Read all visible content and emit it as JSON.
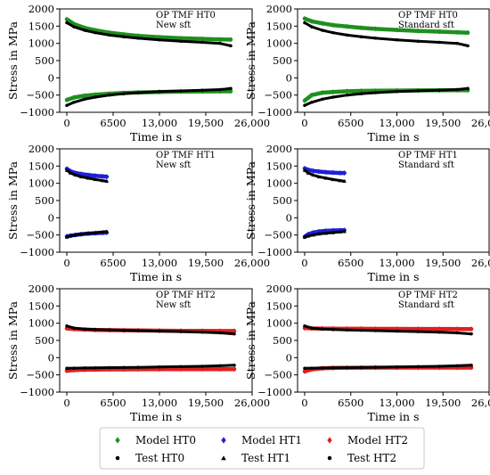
{
  "chart_data": [
    {
      "type": "scatter",
      "annotation": [
        "OP TMF HT0",
        "New sft"
      ],
      "xlabel": "Time in s",
      "ylabel": "Stress in MPa",
      "xlim": [
        -1000,
        26000
      ],
      "ylim": [
        -1000,
        2000
      ],
      "xticks": [
        0,
        6500,
        13000,
        19500,
        26000
      ],
      "xtick_labels": [
        "0",
        "6500",
        "13,000",
        "19,500",
        "26,000"
      ],
      "yticks": [
        -1000,
        -500,
        0,
        500,
        1000,
        1500,
        2000
      ],
      "ytick_labels": [
        "−1000",
        "−500",
        "0",
        "500",
        "1000",
        "1500",
        "2000"
      ],
      "series": [
        {
          "name": "Model HT0",
          "color": "#1f8f1f",
          "marker": "diamond",
          "branch": "max",
          "x": [
            0,
            1000,
            2500,
            4000,
            6000,
            8000,
            10000,
            13000,
            16000,
            19000,
            21500,
            23000
          ],
          "y": [
            1700,
            1560,
            1450,
            1380,
            1310,
            1260,
            1220,
            1180,
            1150,
            1130,
            1115,
            1110
          ]
        },
        {
          "name": "Model HT0",
          "color": "#1f8f1f",
          "marker": "diamond",
          "branch": "min",
          "x": [
            0,
            1000,
            2500,
            4000,
            6000,
            8000,
            10000,
            13000,
            16000,
            19000,
            21500,
            23000
          ],
          "y": [
            -640,
            -570,
            -520,
            -490,
            -460,
            -440,
            -425,
            -410,
            -400,
            -395,
            -392,
            -390
          ]
        },
        {
          "name": "Test HT0",
          "color": "#000000",
          "marker": "dot",
          "branch": "max",
          "x": [
            0,
            1000,
            2500,
            4000,
            6000,
            8000,
            10000,
            13000,
            16000,
            19000,
            21500,
            23000
          ],
          "y": [
            1600,
            1480,
            1380,
            1310,
            1240,
            1190,
            1150,
            1100,
            1060,
            1030,
            1000,
            930
          ]
        },
        {
          "name": "Test HT0",
          "color": "#000000",
          "marker": "dot",
          "branch": "min",
          "x": [
            0,
            1000,
            2500,
            4000,
            6000,
            8000,
            10000,
            13000,
            16000,
            19000,
            21500,
            23000
          ],
          "y": [
            -800,
            -710,
            -620,
            -560,
            -500,
            -460,
            -430,
            -400,
            -380,
            -360,
            -340,
            -310
          ]
        }
      ]
    },
    {
      "type": "scatter",
      "annotation": [
        "OP TMF HT0",
        "Standard sft"
      ],
      "xlabel": "Time in s",
      "ylabel": "Stress in MPa",
      "xlim": [
        -1000,
        26000
      ],
      "ylim": [
        -1000,
        2000
      ],
      "xticks": [
        0,
        6500,
        13000,
        19500,
        26000
      ],
      "xtick_labels": [
        "0",
        "6500",
        "13,000",
        "19,500",
        "26,000"
      ],
      "yticks": [
        -1000,
        -500,
        0,
        500,
        1000,
        1500,
        2000
      ],
      "ytick_labels": [
        "−1000",
        "−500",
        "0",
        "500",
        "1000",
        "1500",
        "2000"
      ],
      "series": [
        {
          "name": "Model HT0",
          "color": "#1f8f1f",
          "marker": "diamond",
          "branch": "max",
          "x": [
            0,
            1000,
            2500,
            4000,
            6000,
            8000,
            10000,
            13000,
            16000,
            19000,
            21500,
            23000
          ],
          "y": [
            1720,
            1640,
            1580,
            1530,
            1490,
            1450,
            1420,
            1390,
            1360,
            1340,
            1320,
            1310
          ]
        },
        {
          "name": "Model HT0",
          "color": "#1f8f1f",
          "marker": "diamond",
          "branch": "min",
          "x": [
            0,
            1000,
            2500,
            4000,
            6000,
            8000,
            10000,
            13000,
            16000,
            19000,
            21500,
            23000
          ],
          "y": [
            -660,
            -500,
            -430,
            -410,
            -390,
            -380,
            -375,
            -370,
            -365,
            -362,
            -360,
            -360
          ]
        },
        {
          "name": "Test HT0",
          "color": "#000000",
          "marker": "dot",
          "branch": "max",
          "x": [
            0,
            1000,
            2500,
            4000,
            6000,
            8000,
            10000,
            13000,
            16000,
            19000,
            21500,
            23000
          ],
          "y": [
            1600,
            1480,
            1380,
            1310,
            1240,
            1190,
            1150,
            1100,
            1060,
            1030,
            1000,
            930
          ]
        },
        {
          "name": "Test HT0",
          "color": "#000000",
          "marker": "dot",
          "branch": "min",
          "x": [
            0,
            1000,
            2500,
            4000,
            6000,
            8000,
            10000,
            13000,
            16000,
            19000,
            21500,
            23000
          ],
          "y": [
            -800,
            -710,
            -620,
            -560,
            -500,
            -460,
            -430,
            -400,
            -380,
            -360,
            -340,
            -310
          ]
        }
      ]
    },
    {
      "type": "scatter",
      "annotation": [
        "OP TMF HT1",
        "New sft"
      ],
      "xlabel": "Time in s",
      "ylabel": "Stress in MPa",
      "xlim": [
        -1000,
        26000
      ],
      "ylim": [
        -1000,
        2000
      ],
      "xticks": [
        0,
        6500,
        13000,
        19500,
        26000
      ],
      "xtick_labels": [
        "0",
        "6500",
        "13,000",
        "19,500",
        "26,000"
      ],
      "yticks": [
        -1000,
        -500,
        0,
        500,
        1000,
        1500,
        2000
      ],
      "ytick_labels": [
        "−1000",
        "−500",
        "0",
        "500",
        "1000",
        "1500",
        "2000"
      ],
      "series": [
        {
          "name": "Model HT1",
          "color": "#1f1fd6",
          "marker": "diamond",
          "branch": "max",
          "x": [
            0,
            500,
            1200,
            2000,
            3000,
            4000,
            5000,
            5600
          ],
          "y": [
            1420,
            1350,
            1300,
            1270,
            1240,
            1220,
            1200,
            1190
          ]
        },
        {
          "name": "Model HT1",
          "color": "#1f1fd6",
          "marker": "diamond",
          "branch": "min",
          "x": [
            0,
            500,
            1200,
            2000,
            3000,
            4000,
            5000,
            5600
          ],
          "y": [
            -540,
            -520,
            -500,
            -480,
            -460,
            -450,
            -440,
            -430
          ]
        },
        {
          "name": "Test HT1",
          "color": "#000000",
          "marker": "triangle",
          "branch": "max",
          "x": [
            0,
            500,
            1200,
            2000,
            3000,
            4000,
            5000,
            5600
          ],
          "y": [
            1380,
            1300,
            1240,
            1190,
            1150,
            1110,
            1080,
            1060
          ]
        },
        {
          "name": "Test HT1",
          "color": "#000000",
          "marker": "triangle",
          "branch": "min",
          "x": [
            0,
            500,
            1200,
            2000,
            3000,
            4000,
            5000,
            5600
          ],
          "y": [
            -560,
            -530,
            -500,
            -470,
            -450,
            -430,
            -410,
            -400
          ]
        }
      ]
    },
    {
      "type": "scatter",
      "annotation": [
        "OP TMF HT1",
        "Standard sft"
      ],
      "xlabel": "Time in s",
      "ylabel": "Stress in MPa",
      "xlim": [
        -1000,
        26000
      ],
      "ylim": [
        -1000,
        2000
      ],
      "xticks": [
        0,
        6500,
        13000,
        19500,
        26000
      ],
      "xtick_labels": [
        "0",
        "6500",
        "13,000",
        "19,500",
        "26,000"
      ],
      "yticks": [
        -1000,
        -500,
        0,
        500,
        1000,
        1500,
        2000
      ],
      "ytick_labels": [
        "−1000",
        "−500",
        "0",
        "500",
        "1000",
        "1500",
        "2000"
      ],
      "series": [
        {
          "name": "Model HT1",
          "color": "#1f1fd6",
          "marker": "diamond",
          "branch": "max",
          "x": [
            0,
            500,
            1200,
            2000,
            3000,
            4000,
            5000,
            5600
          ],
          "y": [
            1430,
            1390,
            1360,
            1340,
            1320,
            1310,
            1300,
            1300
          ]
        },
        {
          "name": "Model HT1",
          "color": "#1f1fd6",
          "marker": "diamond",
          "branch": "min",
          "x": [
            0,
            500,
            1200,
            2000,
            3000,
            4000,
            5000,
            5600
          ],
          "y": [
            -550,
            -480,
            -430,
            -400,
            -380,
            -370,
            -365,
            -360
          ]
        },
        {
          "name": "Test HT1",
          "color": "#000000",
          "marker": "triangle",
          "branch": "max",
          "x": [
            0,
            500,
            1200,
            2000,
            3000,
            4000,
            5000,
            5600
          ],
          "y": [
            1380,
            1300,
            1240,
            1190,
            1150,
            1110,
            1080,
            1060
          ]
        },
        {
          "name": "Test HT1",
          "color": "#000000",
          "marker": "triangle",
          "branch": "min",
          "x": [
            0,
            500,
            1200,
            2000,
            3000,
            4000,
            5000,
            5600
          ],
          "y": [
            -560,
            -530,
            -500,
            -470,
            -450,
            -430,
            -410,
            -400
          ]
        }
      ]
    },
    {
      "type": "scatter",
      "annotation": [
        "OP TMF HT2",
        "New sft"
      ],
      "xlabel": "Time in s",
      "ylabel": "Stress in MPa",
      "xlim": [
        -1000,
        26000
      ],
      "ylim": [
        -1000,
        2000
      ],
      "xticks": [
        0,
        6500,
        13000,
        19500,
        26000
      ],
      "xtick_labels": [
        "0",
        "6500",
        "13,000",
        "19,500",
        "26,000"
      ],
      "yticks": [
        -1000,
        -500,
        0,
        500,
        1000,
        1500,
        2000
      ],
      "ytick_labels": [
        "−1000",
        "−500",
        "0",
        "500",
        "1000",
        "1500",
        "2000"
      ],
      "series": [
        {
          "name": "Model HT2",
          "color": "#e01f1f",
          "marker": "diamond",
          "branch": "max",
          "x": [
            0,
            1000,
            2500,
            4000,
            6000,
            8000,
            10000,
            13000,
            16000,
            19000,
            21500,
            23500
          ],
          "y": [
            850,
            830,
            815,
            805,
            800,
            795,
            790,
            785,
            780,
            778,
            775,
            775
          ]
        },
        {
          "name": "Model HT2",
          "color": "#e01f1f",
          "marker": "diamond",
          "branch": "min",
          "x": [
            0,
            1000,
            2500,
            4000,
            6000,
            8000,
            10000,
            13000,
            16000,
            19000,
            21500,
            23500
          ],
          "y": [
            -380,
            -360,
            -350,
            -345,
            -340,
            -340,
            -338,
            -336,
            -335,
            -334,
            -333,
            -333
          ]
        },
        {
          "name": "Test HT2",
          "color": "#000000",
          "marker": "dot",
          "branch": "max",
          "x": [
            0,
            1000,
            2500,
            4000,
            6000,
            8000,
            10000,
            13000,
            16000,
            19000,
            21500,
            23500
          ],
          "y": [
            920,
            860,
            830,
            815,
            805,
            795,
            785,
            770,
            755,
            740,
            720,
            690
          ]
        },
        {
          "name": "Test HT2",
          "color": "#000000",
          "marker": "dot",
          "branch": "min",
          "x": [
            0,
            1000,
            2500,
            4000,
            6000,
            8000,
            10000,
            13000,
            16000,
            19000,
            21500,
            23500
          ],
          "y": [
            -310,
            -305,
            -300,
            -295,
            -290,
            -285,
            -280,
            -270,
            -260,
            -250,
            -235,
            -220
          ]
        }
      ]
    },
    {
      "type": "scatter",
      "annotation": [
        "OP TMF HT2",
        "Standard sft"
      ],
      "xlabel": "Time in s",
      "ylabel": "Stress in MPa",
      "xlim": [
        -1000,
        26000
      ],
      "ylim": [
        -1000,
        2000
      ],
      "xticks": [
        0,
        6500,
        13000,
        19500,
        26000
      ],
      "xtick_labels": [
        "0",
        "6500",
        "13,000",
        "19,500",
        "26,000"
      ],
      "yticks": [
        -1000,
        -500,
        0,
        500,
        1000,
        1500,
        2000
      ],
      "ytick_labels": [
        "−1000",
        "−500",
        "0",
        "500",
        "1000",
        "1500",
        "2000"
      ],
      "series": [
        {
          "name": "Model HT2",
          "color": "#e01f1f",
          "marker": "diamond",
          "branch": "max",
          "x": [
            0,
            1000,
            2500,
            4000,
            6000,
            8000,
            10000,
            13000,
            16000,
            19000,
            21500,
            23500
          ],
          "y": [
            860,
            850,
            845,
            842,
            840,
            838,
            836,
            835,
            834,
            833,
            832,
            832
          ]
        },
        {
          "name": "Model HT2",
          "color": "#e01f1f",
          "marker": "diamond",
          "branch": "min",
          "x": [
            0,
            1000,
            2500,
            4000,
            6000,
            8000,
            10000,
            13000,
            16000,
            19000,
            21500,
            23500
          ],
          "y": [
            -400,
            -340,
            -310,
            -300,
            -295,
            -292,
            -290,
            -290,
            -290,
            -290,
            -290,
            -290
          ]
        },
        {
          "name": "Test HT2",
          "color": "#000000",
          "marker": "dot",
          "branch": "max",
          "x": [
            0,
            1000,
            2500,
            4000,
            6000,
            8000,
            10000,
            13000,
            16000,
            19000,
            21500,
            23500
          ],
          "y": [
            920,
            860,
            830,
            815,
            805,
            795,
            785,
            770,
            755,
            740,
            720,
            690
          ]
        },
        {
          "name": "Test HT2",
          "color": "#000000",
          "marker": "dot",
          "branch": "min",
          "x": [
            0,
            1000,
            2500,
            4000,
            6000,
            8000,
            10000,
            13000,
            16000,
            19000,
            21500,
            23500
          ],
          "y": [
            -310,
            -305,
            -300,
            -295,
            -290,
            -285,
            -280,
            -270,
            -260,
            -250,
            -235,
            -220
          ]
        }
      ]
    }
  ],
  "legend": {
    "placement": "bottom",
    "entries": [
      {
        "label": "Model HT0",
        "marker": "diamond",
        "color": "#1f8f1f"
      },
      {
        "label": "Model HT1",
        "marker": "diamond",
        "color": "#1f1fd6"
      },
      {
        "label": "Model HT2",
        "marker": "diamond",
        "color": "#e01f1f"
      },
      {
        "label": "Test HT0",
        "marker": "dot",
        "color": "#000000"
      },
      {
        "label": "Test HT1",
        "marker": "triangle",
        "color": "#000000"
      },
      {
        "label": "Test HT2",
        "marker": "dot",
        "color": "#000000"
      }
    ]
  }
}
